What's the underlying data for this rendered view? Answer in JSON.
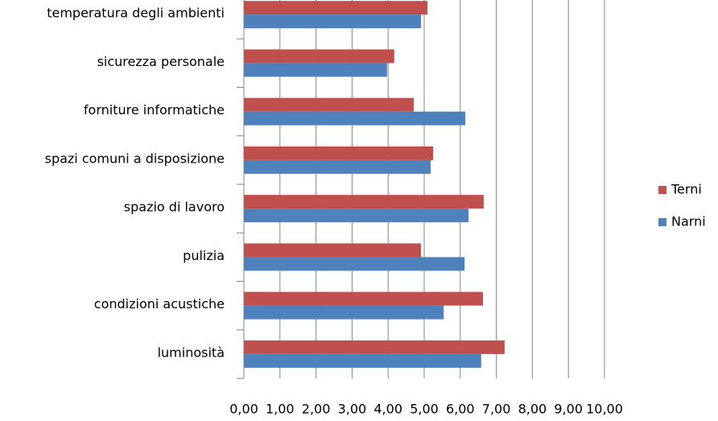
{
  "chart_data": {
    "type": "hbar",
    "categories": [
      "temperatura degli ambienti",
      "sicurezza personale",
      "forniture informatiche",
      "spazi comuni a disposizione",
      "spazio di lavoro",
      "pulizia",
      "condizioni acustiche",
      "luminosità"
    ],
    "series": [
      {
        "name": "Terni",
        "color": "#c0504d",
        "values": [
          5.09,
          4.17,
          4.71,
          5.25,
          6.65,
          4.91,
          6.63,
          7.23
        ]
      },
      {
        "name": "Narni",
        "color": "#4f81bd",
        "values": [
          4.91,
          3.97,
          6.14,
          5.18,
          6.23,
          6.12,
          5.54,
          6.58
        ]
      }
    ],
    "xlim": [
      0,
      10
    ],
    "xticks": [
      {
        "value": 0,
        "label": "0,00"
      },
      {
        "value": 1,
        "label": "1,00"
      },
      {
        "value": 2,
        "label": "2,00"
      },
      {
        "value": 3,
        "label": "3,00"
      },
      {
        "value": 4,
        "label": "4,00"
      },
      {
        "value": 5,
        "label": "5,00"
      },
      {
        "value": 6,
        "label": "6,00"
      },
      {
        "value": 7,
        "label": "7,00"
      },
      {
        "value": 8,
        "label": "8,00"
      },
      {
        "value": 9,
        "label": "9,00"
      },
      {
        "value": 10,
        "label": "10,00"
      }
    ],
    "grid": true,
    "legend": "right"
  }
}
